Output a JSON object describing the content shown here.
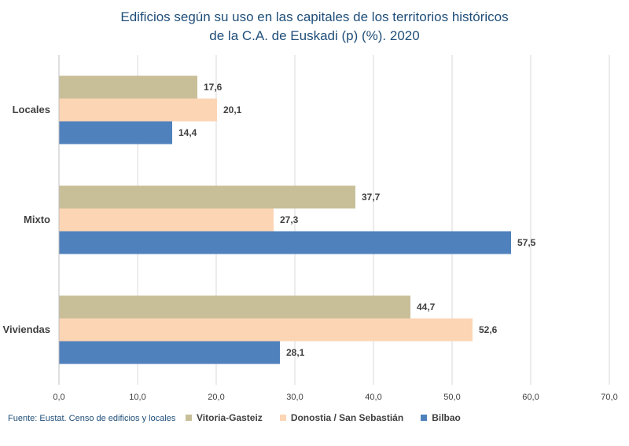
{
  "chart_data": {
    "type": "bar",
    "orientation": "horizontal",
    "title_lines": [
      "Edificios según su uso en las capitales de los territorios históricos",
      "de la C.A. de Euskadi (p) (%). 2020"
    ],
    "categories": [
      "Locales",
      "Mixto",
      "Viviendas"
    ],
    "series": [
      {
        "name": "Vitoria-Gasteiz",
        "color": "#c8bf99",
        "values": [
          17.6,
          37.7,
          44.7
        ],
        "labels": [
          "17,6",
          "37,7",
          "44,7"
        ]
      },
      {
        "name": "Donostia / San Sebastián",
        "color": "#fcd5b5",
        "values": [
          20.1,
          27.3,
          52.6
        ],
        "labels": [
          "20,1",
          "27,3",
          "52,6"
        ]
      },
      {
        "name": "Bilbao",
        "color": "#4f81bd",
        "values": [
          14.4,
          57.5,
          28.1
        ],
        "labels": [
          "14,4",
          "57,5",
          "28,1"
        ]
      }
    ],
    "xlim": [
      0,
      70
    ],
    "xticks": [
      0,
      10,
      20,
      30,
      40,
      50,
      60,
      70
    ],
    "xtick_labels": [
      "0,0",
      "10,0",
      "20,0",
      "30,0",
      "40,0",
      "50,0",
      "60,0",
      "70,0"
    ],
    "grid": true,
    "legend_position": "bottom"
  },
  "source": "Fuente: Eustat. Censo de edificios y locales"
}
